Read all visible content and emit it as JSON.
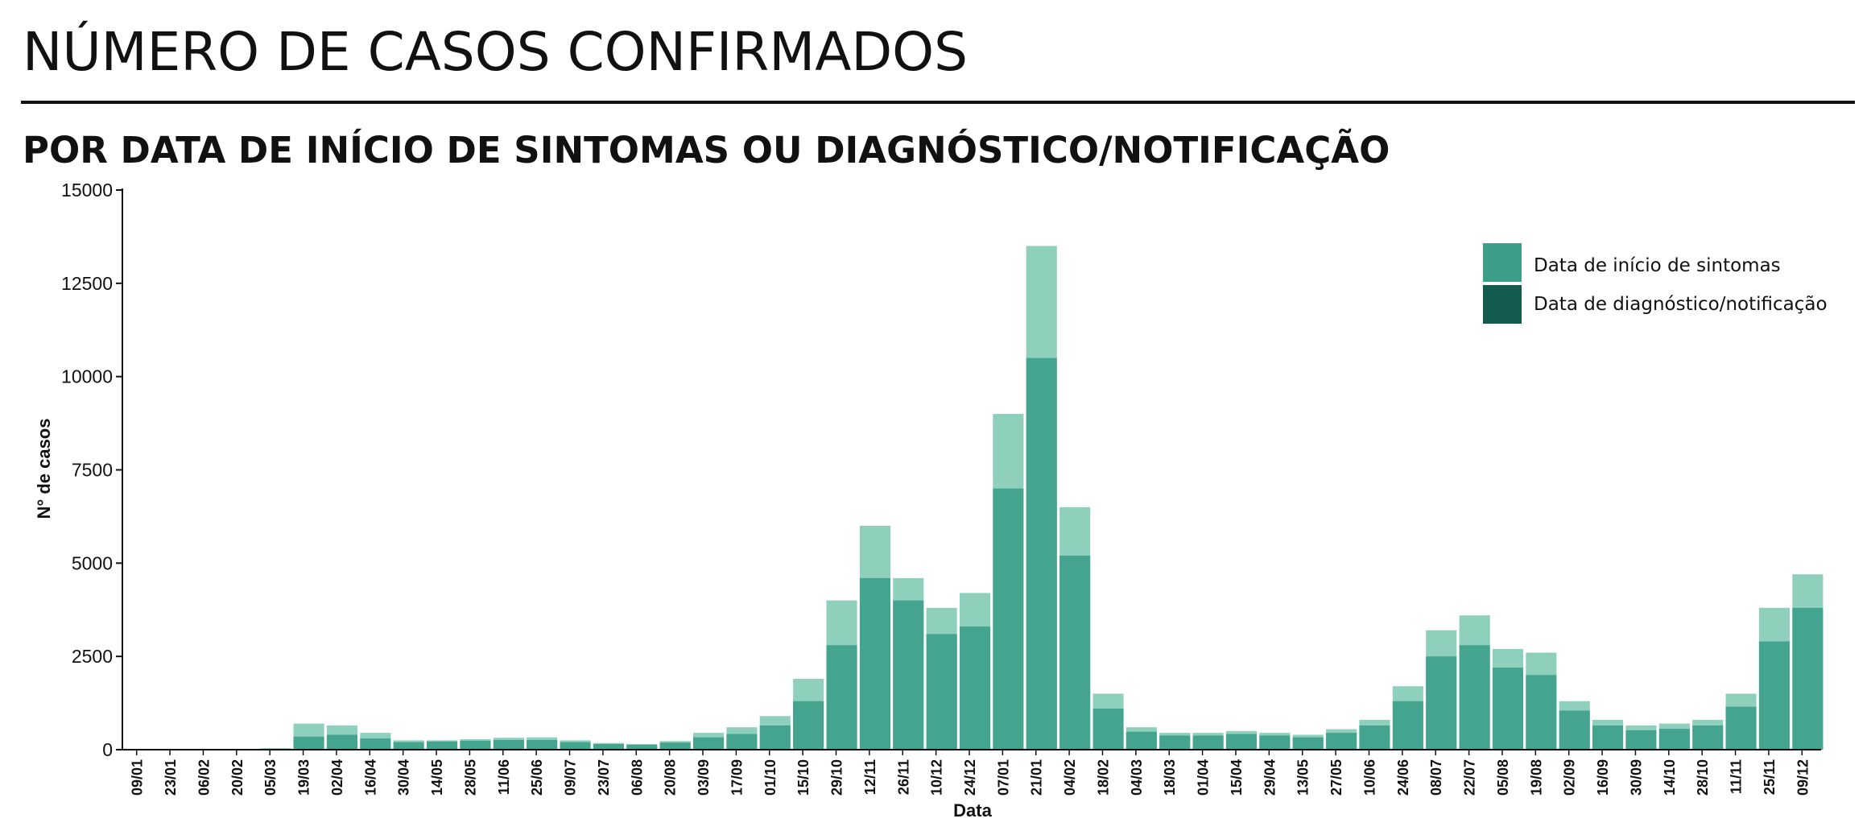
{
  "header": {
    "title": "NÚMERO DE CASOS CONFIRMADOS",
    "subtitle": "POR DATA DE INÍCIO DE SINTOMAS OU DIAGNÓSTICO/NOTIFICAÇÃO"
  },
  "colors": {
    "symptom_onset": "#3d9e89",
    "diagnosis": "#135a4f",
    "symptom_fill_light": "#8fd0bd"
  },
  "chart_data": {
    "type": "bar",
    "xlabel": "Data",
    "ylabel": "N° de casos",
    "ylim": [
      0,
      15000
    ],
    "yticks": [
      0,
      2500,
      5000,
      7500,
      10000,
      12500,
      15000
    ],
    "categories": [
      "09/01",
      "23/01",
      "06/02",
      "20/02",
      "05/03",
      "19/03",
      "02/04",
      "16/04",
      "30/04",
      "14/05",
      "28/05",
      "11/06",
      "25/06",
      "09/07",
      "23/07",
      "06/08",
      "20/08",
      "03/09",
      "17/09",
      "01/10",
      "15/10",
      "29/10",
      "12/11",
      "26/11",
      "10/12",
      "24/12",
      "07/01",
      "21/01",
      "04/02",
      "18/02",
      "04/03",
      "18/03",
      "01/04",
      "15/04",
      "29/04",
      "13/05",
      "27/05",
      "10/06",
      "24/06",
      "08/07",
      "22/07",
      "05/08",
      "19/08",
      "02/09",
      "16/09",
      "30/09",
      "14/10",
      "28/10",
      "11/11",
      "25/11",
      "09/12"
    ],
    "legend": {
      "position": "top-right",
      "entries": [
        "Data de início de sintomas",
        "Data de diagnóstico/notificação"
      ]
    },
    "grid": false,
    "series": [
      {
        "name": "Data de início de sintomas",
        "values": [
          0,
          0,
          0,
          0,
          40,
          700,
          650,
          450,
          250,
          250,
          280,
          320,
          330,
          250,
          180,
          150,
          230,
          450,
          600,
          900,
          1900,
          4000,
          6000,
          4600,
          3800,
          4200,
          9000,
          13500,
          6500,
          1500,
          600,
          450,
          450,
          500,
          450,
          400,
          550,
          800,
          1700,
          3200,
          3600,
          2700,
          2600,
          1300,
          800,
          650,
          700,
          800,
          1500,
          3800,
          4700
        ]
      },
      {
        "name": "Data de diagnóstico/notificação",
        "values": [
          0,
          0,
          0,
          0,
          20,
          350,
          400,
          300,
          200,
          220,
          240,
          260,
          260,
          200,
          150,
          130,
          190,
          330,
          420,
          650,
          1300,
          2800,
          4600,
          4000,
          3100,
          3300,
          7000,
          10500,
          5200,
          1100,
          480,
          380,
          380,
          420,
          380,
          330,
          450,
          650,
          1300,
          2500,
          2800,
          2200,
          2000,
          1050,
          650,
          520,
          560,
          650,
          1150,
          2900,
          3800
        ]
      }
    ]
  }
}
